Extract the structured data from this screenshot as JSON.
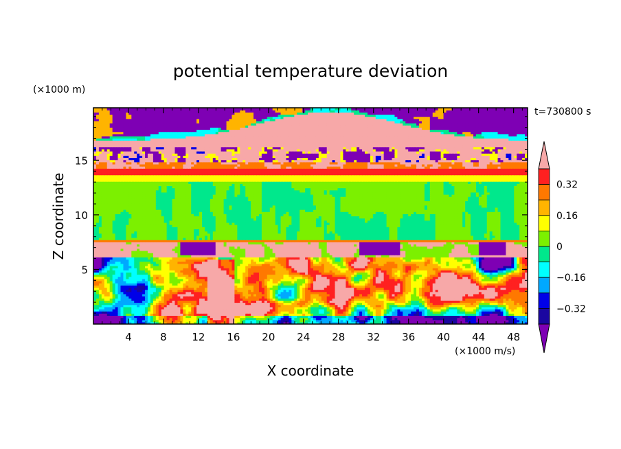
{
  "chart_data": {
    "type": "heatmap",
    "title": "potential temperature deviation",
    "xlabel": "X coordinate",
    "ylabel": "Z coordinate",
    "x_unit": "(×1000 m/s)",
    "y_unit": "(×1000 m)",
    "time_label": "t=730800 s",
    "xlim": [
      0,
      49.6
    ],
    "ylim": [
      0,
      19.8
    ],
    "x_ticks": [
      4,
      8,
      12,
      16,
      20,
      24,
      28,
      32,
      36,
      40,
      44,
      48
    ],
    "y_ticks": [
      5,
      10,
      15
    ],
    "grid": false,
    "colorbar": {
      "position": "right",
      "levels": [
        -0.4,
        -0.32,
        -0.24,
        -0.16,
        -0.08,
        0,
        0.08,
        0.16,
        0.24,
        0.32,
        0.4
      ],
      "labels": [
        "0.32",
        "0.16",
        "0",
        "−0.16",
        "−0.32"
      ],
      "label_values": [
        0.32,
        0.16,
        0,
        -0.16,
        -0.32
      ],
      "colors": [
        "#7e00b4",
        "#1a06a0",
        "#0000e8",
        "#00a8ff",
        "#00ffff",
        "#00e88c",
        "#7cf000",
        "#ffff00",
        "#ffb400",
        "#ff7800",
        "#ff2020",
        "#f7a8a8"
      ]
    },
    "layers": [
      {
        "z_range": [
          16.5,
          19.8
        ],
        "description_value": 0.4,
        "note": "upper layer mixture of high positive and strong negative values"
      },
      {
        "z_range": [
          13.5,
          14.2
        ],
        "description_value": 0.3
      },
      {
        "z_range": [
          7.5,
          13.5
        ],
        "description_value": 0.0
      },
      {
        "z_range": [
          0,
          7.5
        ],
        "description_value": 0.0,
        "note": "turbulent lower layer"
      }
    ]
  }
}
